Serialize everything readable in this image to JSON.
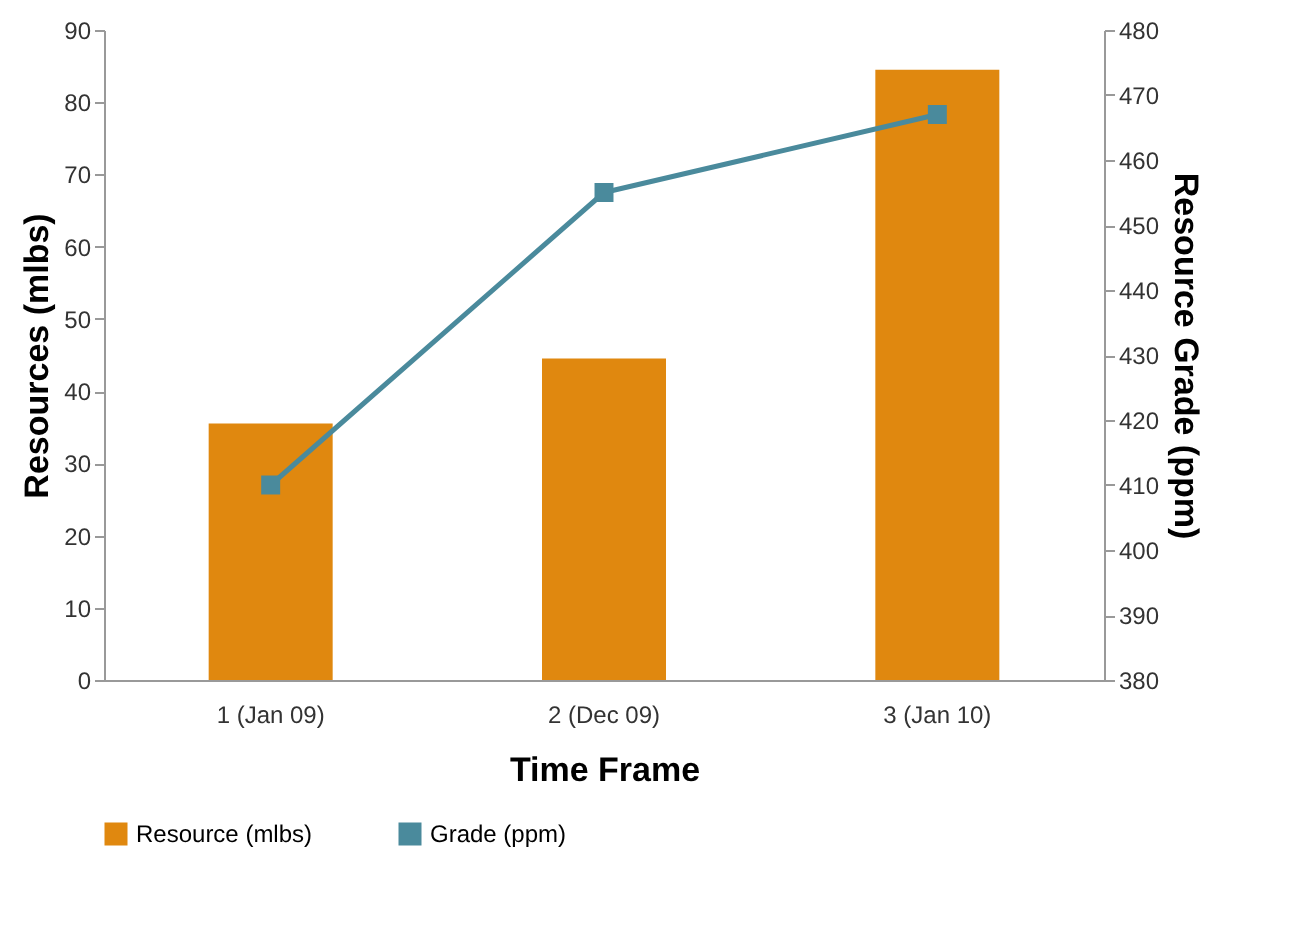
{
  "chart_data": {
    "type": "bar",
    "categories": [
      "1 (Jan 09)",
      "2 (Dec 09)",
      "3 (Jan 10)"
    ],
    "xlabel": "Time Frame",
    "ylabel": "Resources (mlbs)",
    "y2label": "Resource Grade (ppm)",
    "series": [
      {
        "name": "Resource (mlbs)",
        "color": "#e0880f",
        "values": [
          35.5,
          44.5,
          84.5
        ]
      },
      {
        "name": "Grade (ppm)",
        "type": "line",
        "axis": "y2",
        "color": "#4a8a9c",
        "values": [
          410,
          455,
          467
        ]
      }
    ],
    "ylim": [
      0,
      90
    ],
    "yticks": [
      0,
      10,
      20,
      30,
      40,
      50,
      60,
      70,
      80,
      90
    ],
    "y2lim": [
      380,
      480
    ],
    "y2ticks": [
      380,
      390,
      400,
      410,
      420,
      430,
      440,
      450,
      460,
      470,
      480
    ],
    "marker": "square",
    "legend": "bottom",
    "grid": false
  }
}
